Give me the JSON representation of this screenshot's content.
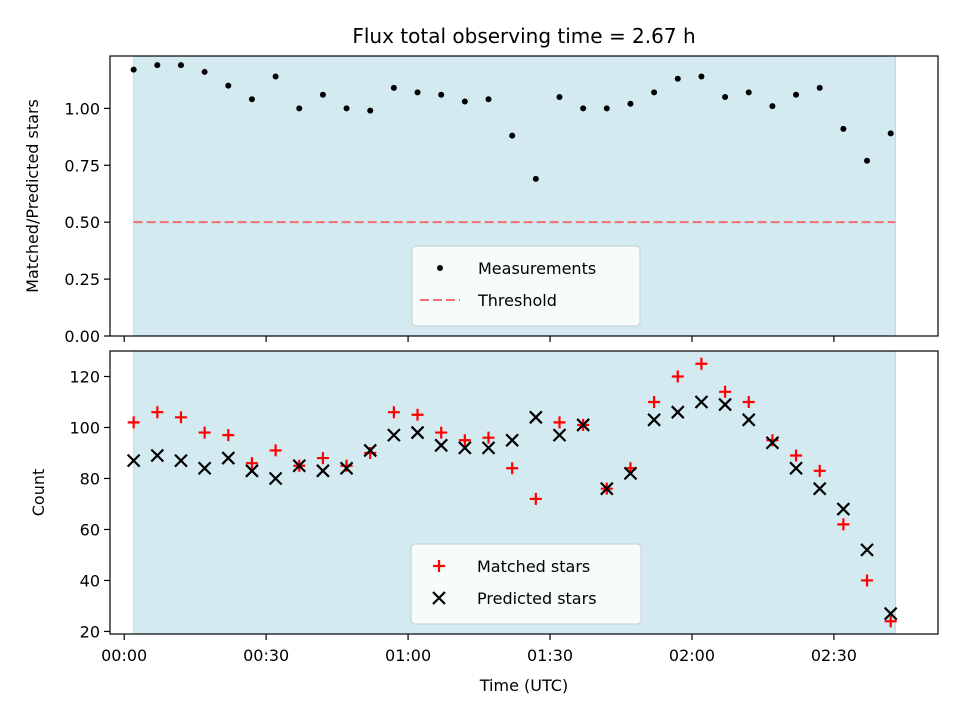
{
  "chart_data": [
    {
      "type": "scatter",
      "title": "Flux total observing time = 2.67 h",
      "xlabel": "",
      "ylabel": "Matched/Predicted stars",
      "ylim": [
        0,
        1.23
      ],
      "xlim": [
        "23:57",
        "02:52"
      ],
      "yticks": [
        "0.00",
        "0.25",
        "0.50",
        "0.75",
        "1.00"
      ],
      "yticks_values": [
        0,
        0.25,
        0.5,
        0.75,
        1.0
      ],
      "legend_position": "lower-center",
      "observing_window": [
        "00:02",
        "02:43"
      ],
      "observing_window_color": "#d3eaf1",
      "threshold": {
        "name": "Threshold",
        "value": 0.5,
        "color": "#f07070",
        "style": "dashed"
      },
      "series": [
        {
          "name": "Measurements",
          "marker": "dot",
          "color": "#000000",
          "x": [
            "00:02",
            "00:07",
            "00:12",
            "00:17",
            "00:22",
            "00:27",
            "00:32",
            "00:37",
            "00:42",
            "00:47",
            "00:52",
            "00:57",
            "01:02",
            "01:07",
            "01:12",
            "01:17",
            "01:22",
            "01:27",
            "01:32",
            "01:37",
            "01:42",
            "01:47",
            "01:52",
            "01:57",
            "02:02",
            "02:07",
            "02:12",
            "02:17",
            "02:22",
            "02:27",
            "02:32",
            "02:37",
            "02:42"
          ],
          "y": [
            1.17,
            1.19,
            1.19,
            1.16,
            1.1,
            1.04,
            1.14,
            1.0,
            1.06,
            1.0,
            0.99,
            1.09,
            1.07,
            1.06,
            1.03,
            1.04,
            0.88,
            0.69,
            1.05,
            1.0,
            1.0,
            1.02,
            1.07,
            1.13,
            1.14,
            1.05,
            1.07,
            1.01,
            1.06,
            1.09,
            0.91,
            0.77,
            0.89
          ]
        }
      ]
    },
    {
      "type": "scatter",
      "title": "",
      "xlabel": "Time (UTC)",
      "ylabel": "Count",
      "ylim": [
        19,
        130
      ],
      "xlim": [
        "23:57",
        "02:52"
      ],
      "yticks": [
        "20",
        "40",
        "60",
        "80",
        "100",
        "120"
      ],
      "yticks_values": [
        20,
        40,
        60,
        80,
        100,
        120
      ],
      "xticks": [
        "00:00",
        "00:30",
        "01:00",
        "01:30",
        "02:00",
        "02:30"
      ],
      "xticks_values": [
        "00:00",
        "00:30",
        "01:00",
        "01:30",
        "02:00",
        "02:30"
      ],
      "legend_position": "lower-center",
      "observing_window": [
        "00:02",
        "02:43"
      ],
      "observing_window_color": "#d3eaf1",
      "series": [
        {
          "name": "Matched stars",
          "marker": "plus",
          "color": "#ff0000",
          "x": [
            "00:02",
            "00:07",
            "00:12",
            "00:17",
            "00:22",
            "00:27",
            "00:32",
            "00:37",
            "00:42",
            "00:47",
            "00:52",
            "00:57",
            "01:02",
            "01:07",
            "01:12",
            "01:17",
            "01:22",
            "01:27",
            "01:32",
            "01:37",
            "01:42",
            "01:47",
            "01:52",
            "01:57",
            "02:02",
            "02:07",
            "02:12",
            "02:17",
            "02:22",
            "02:27",
            "02:32",
            "02:37",
            "02:42"
          ],
          "y": [
            102,
            106,
            104,
            98,
            97,
            86,
            91,
            85,
            88,
            85,
            90,
            106,
            105,
            98,
            95,
            96,
            84,
            72,
            102,
            101,
            76,
            84,
            110,
            120,
            125,
            114,
            110,
            95,
            89,
            83,
            62,
            40,
            24
          ]
        },
        {
          "name": "Predicted stars",
          "marker": "x",
          "color": "#000000",
          "x": [
            "00:02",
            "00:07",
            "00:12",
            "00:17",
            "00:22",
            "00:27",
            "00:32",
            "00:37",
            "00:42",
            "00:47",
            "00:52",
            "00:57",
            "01:02",
            "01:07",
            "01:12",
            "01:17",
            "01:22",
            "01:27",
            "01:32",
            "01:37",
            "01:42",
            "01:47",
            "01:52",
            "01:57",
            "02:02",
            "02:07",
            "02:12",
            "02:17",
            "02:22",
            "02:27",
            "02:32",
            "02:37",
            "02:42"
          ],
          "y": [
            87,
            89,
            87,
            84,
            88,
            83,
            80,
            85,
            83,
            84,
            91,
            97,
            98,
            93,
            92,
            92,
            95,
            104,
            97,
            101,
            76,
            82,
            103,
            106,
            110,
            109,
            103,
            94,
            84,
            76,
            68,
            52,
            27
          ]
        }
      ]
    }
  ]
}
